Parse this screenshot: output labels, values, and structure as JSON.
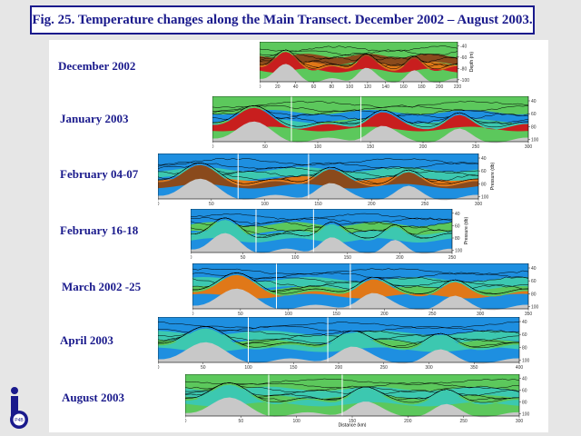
{
  "figure_title": "Fig. 25. Temperature changes along the Main Transect. December 2002 – August 2003.",
  "sections": [
    {
      "label": "December 2002",
      "x_ticks": [
        "0",
        "20",
        "40",
        "60",
        "80",
        "100",
        "120",
        "140",
        "160",
        "180",
        "200",
        "220"
      ],
      "y_ticks": [
        "-40",
        "-60",
        "-80",
        "-100"
      ],
      "y_axis_label": "Depth (m)",
      "x_axis_label": ""
    },
    {
      "label": "January 2003",
      "x_ticks": [
        "0",
        "50",
        "100",
        "150",
        "200",
        "250",
        "300"
      ],
      "y_ticks": [
        "40",
        "60",
        "80",
        "100"
      ],
      "y_axis_label": "",
      "x_axis_label": ""
    },
    {
      "label": "February 04-07",
      "x_ticks": [
        "0",
        "50",
        "100",
        "150",
        "200",
        "250",
        "300"
      ],
      "y_ticks": [
        "40",
        "60",
        "80",
        "100"
      ],
      "y_axis_label": "Pressure (db)",
      "x_axis_label": ""
    },
    {
      "label": "February 16-18",
      "x_ticks": [
        "0",
        "50",
        "100",
        "150",
        "200",
        "250"
      ],
      "y_ticks": [
        "40",
        "60",
        "80",
        "100"
      ],
      "y_axis_label": "Pressure (db)",
      "x_axis_label": ""
    },
    {
      "label": "March 2002 -25",
      "x_ticks": [
        "0",
        "50",
        "100",
        "150",
        "200",
        "250",
        "300",
        "350"
      ],
      "y_ticks": [
        "40",
        "60",
        "80",
        "100"
      ],
      "y_axis_label": "",
      "x_axis_label": ""
    },
    {
      "label": "April 2003",
      "x_ticks": [
        "0",
        "50",
        "100",
        "150",
        "200",
        "250",
        "300",
        "350",
        "400"
      ],
      "y_ticks": [
        "40",
        "60",
        "80",
        "100"
      ],
      "y_axis_label": "",
      "x_axis_label": ""
    },
    {
      "label": "August 2003",
      "x_ticks": [
        "0",
        "50",
        "100",
        "150",
        "200",
        "250",
        "300"
      ],
      "y_ticks": [
        "40",
        "60",
        "80",
        "100"
      ],
      "y_axis_label": "",
      "x_axis_label": "Distance (km)"
    }
  ],
  "logo": {
    "text": "P4B"
  },
  "colors": {
    "title": "#1a1a8c",
    "seabed": "#c8c8c8",
    "cold_blue": "#1e8fe0",
    "teal": "#3cc8b0",
    "green": "#5cc85c",
    "orange": "#e07818",
    "red": "#c81e1e",
    "brown": "#8a4a1c"
  }
}
